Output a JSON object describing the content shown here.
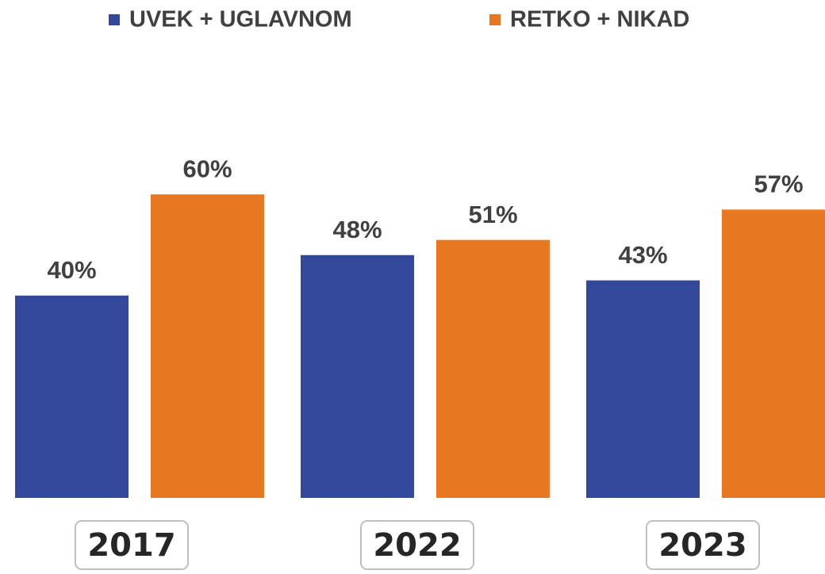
{
  "chart_data": {
    "type": "bar",
    "categories": [
      "2017",
      "2022",
      "2023"
    ],
    "series": [
      {
        "name": "UVEK + UGLAVNOM",
        "color": "#31489b",
        "values": [
          40,
          48,
          43
        ],
        "value_labels": [
          "40%",
          "48%",
          "43%"
        ]
      },
      {
        "name": "RETKO + NIKAD",
        "color": "#e87722",
        "values": [
          60,
          51,
          57
        ],
        "value_labels": [
          "60%",
          "51%",
          "57%"
        ]
      }
    ]
  }
}
